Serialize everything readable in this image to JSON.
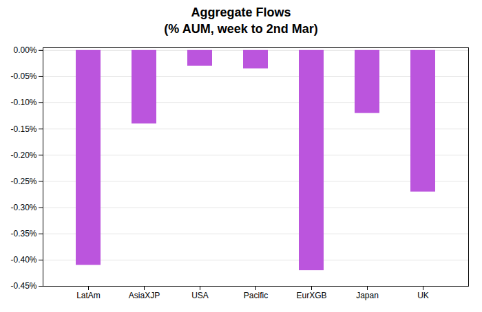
{
  "chart_data": {
    "type": "bar",
    "title": "Aggregate Flows",
    "subtitle": "(% AUM, week to 2nd Mar)",
    "categories": [
      "LatAm",
      "AsiaXJP",
      "USA",
      "Pacific",
      "EurXGB",
      "Japan",
      "UK"
    ],
    "values": [
      -0.41,
      -0.14,
      -0.03,
      -0.035,
      -0.42,
      -0.12,
      -0.27
    ],
    "color": "#bb55dd",
    "ylim": [
      -0.45,
      0.005
    ],
    "yticks": [
      {
        "value": 0.0,
        "label": "0.00%"
      },
      {
        "value": -0.05,
        "label": "-0.05%"
      },
      {
        "value": -0.1,
        "label": "-0.10%"
      },
      {
        "value": -0.15,
        "label": "-0.15%"
      },
      {
        "value": -0.2,
        "label": "-0.20%"
      },
      {
        "value": -0.25,
        "label": "-0.25%"
      },
      {
        "value": -0.3,
        "label": "-0.30%"
      },
      {
        "value": -0.35,
        "label": "-0.35%"
      },
      {
        "value": -0.4,
        "label": "-0.40%"
      },
      {
        "value": -0.45,
        "label": "-0.45%"
      }
    ],
    "grid": true
  }
}
